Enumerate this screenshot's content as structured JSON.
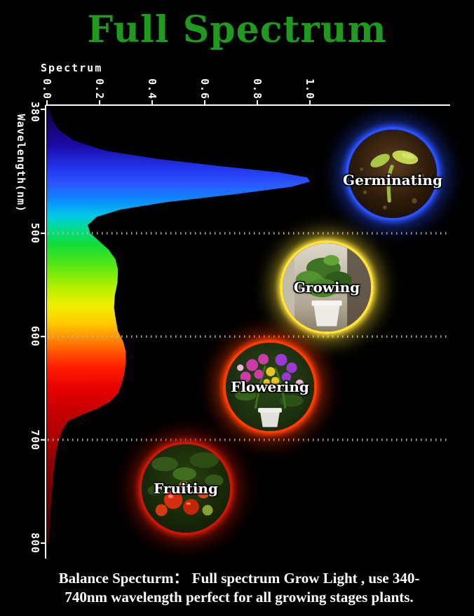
{
  "title": "Full Spectrum",
  "title_color": "#1f9a1f",
  "chart": {
    "x_axis_title": "Spectrum",
    "y_axis_title": "Wavelength(nm)",
    "x_ticks": [
      "0.0",
      "0.2",
      "0.4",
      "0.6",
      "0.8",
      "1.0"
    ],
    "y_ticks": [
      "380",
      "500",
      "600",
      "700",
      "800"
    ]
  },
  "chart_data": {
    "type": "area",
    "title": "Full Spectrum grow light spectral distribution",
    "xlabel": "Spectrum",
    "ylabel": "Wavelength(nm)",
    "x_range": [
      0.0,
      1.0
    ],
    "wavelength_range": [
      380,
      800
    ],
    "gridlines_nm": [
      500,
      600,
      700
    ],
    "grid": "dotted horizontal lines at 500/600/700 nm",
    "wavelength": [
      380,
      390,
      400,
      410,
      420,
      428,
      435,
      441,
      446,
      450,
      455,
      462,
      470,
      477,
      484,
      492,
      500,
      508,
      516,
      525,
      535,
      548,
      560,
      572,
      584,
      595,
      605,
      615,
      625,
      635,
      645,
      655,
      663,
      670,
      676,
      682,
      690,
      700,
      712,
      725,
      740,
      760,
      780,
      800
    ],
    "intensity": [
      0.01,
      0.02,
      0.045,
      0.1,
      0.22,
      0.42,
      0.66,
      0.88,
      0.99,
      1.0,
      0.93,
      0.72,
      0.45,
      0.28,
      0.19,
      0.155,
      0.165,
      0.2,
      0.235,
      0.26,
      0.27,
      0.268,
      0.258,
      0.255,
      0.262,
      0.27,
      0.29,
      0.3,
      0.3,
      0.295,
      0.285,
      0.27,
      0.24,
      0.19,
      0.13,
      0.08,
      0.06,
      0.045,
      0.035,
      0.028,
      0.022,
      0.016,
      0.011,
      0.007
    ],
    "gradient_stops": [
      {
        "nm": 380,
        "color": "#12003c"
      },
      {
        "nm": 415,
        "color": "#1b0aa8"
      },
      {
        "nm": 438,
        "color": "#2238f0"
      },
      {
        "nm": 452,
        "color": "#2b55ff"
      },
      {
        "nm": 468,
        "color": "#0b8cff"
      },
      {
        "nm": 483,
        "color": "#00c8e8"
      },
      {
        "nm": 496,
        "color": "#00dc8c"
      },
      {
        "nm": 510,
        "color": "#10dc3c"
      },
      {
        "nm": 530,
        "color": "#52e614"
      },
      {
        "nm": 552,
        "color": "#b4f000"
      },
      {
        "nm": 570,
        "color": "#f0f000"
      },
      {
        "nm": 588,
        "color": "#ffc800"
      },
      {
        "nm": 602,
        "color": "#ff8c00"
      },
      {
        "nm": 616,
        "color": "#ff5000"
      },
      {
        "nm": 630,
        "color": "#ff1e00"
      },
      {
        "nm": 650,
        "color": "#e60000"
      },
      {
        "nm": 672,
        "color": "#c80000"
      },
      {
        "nm": 700,
        "color": "#aa0000"
      },
      {
        "nm": 745,
        "color": "#780000"
      },
      {
        "nm": 800,
        "color": "#4b0000"
      }
    ]
  },
  "stages": [
    {
      "label": "Germinating",
      "glow": "#2a50ff"
    },
    {
      "label": "Growing",
      "glow": "#ffe23a"
    },
    {
      "label": "Flowering",
      "glow": "#ff3c00"
    },
    {
      "label": "Fruiting",
      "glow": "#c41808"
    }
  ],
  "caption": {
    "line1": "Balance Specturm：  Full spectrum Grow Light , use 340-",
    "line2": "740nm wavelength perfect for all growing stages plants."
  }
}
